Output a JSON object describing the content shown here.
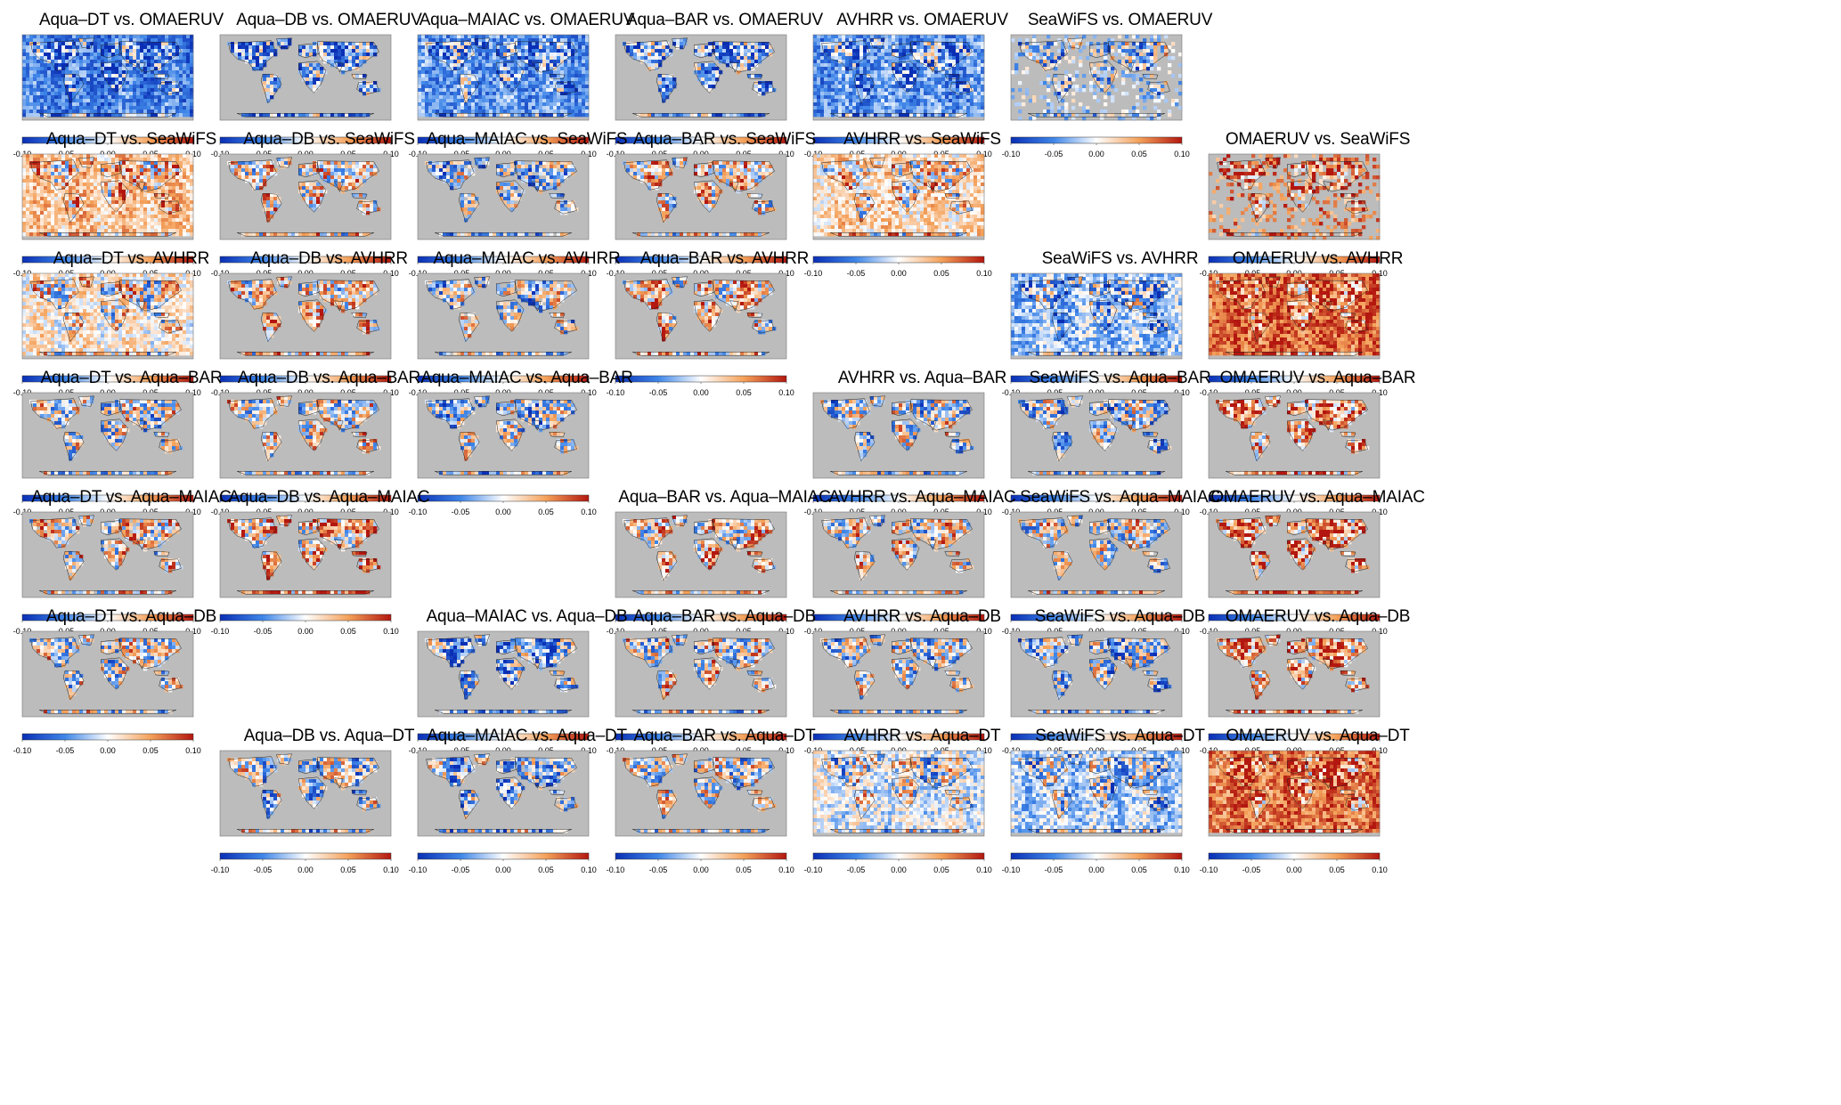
{
  "colorbar": {
    "ticks": [
      "-0.10",
      "-0.05",
      "0.00",
      "0.05",
      "0.10"
    ],
    "range": [
      -0.1,
      0.1
    ],
    "colors": {
      "neg_strong": "#0a2fb5",
      "neg_mid": "#3f86e8",
      "neutral": "#ffffff",
      "pos_mid": "#f4a15a",
      "pos_strong": "#b3170f",
      "ocean_mask": "#bcbcbc"
    }
  },
  "panels": [
    {
      "title": "Aqua–DT vs. OMAERUV",
      "row": 0,
      "col": 0,
      "mode": "full",
      "bias": -0.55
    },
    {
      "title": "Aqua–DB vs. OMAERUV",
      "row": 0,
      "col": 1,
      "mode": "land",
      "bias": -0.45
    },
    {
      "title": "Aqua–MAIAC vs. OMAERUV",
      "row": 0,
      "col": 2,
      "mode": "full",
      "bias": -0.45
    },
    {
      "title": "Aqua–BAR vs. OMAERUV",
      "row": 0,
      "col": 3,
      "mode": "land",
      "bias": -0.35
    },
    {
      "title": "AVHRR vs. OMAERUV",
      "row": 0,
      "col": 4,
      "mode": "full",
      "bias": -0.45
    },
    {
      "title": "SeaWiFS vs. OMAERUV",
      "row": 0,
      "col": 5,
      "mode": "scatter",
      "bias": -0.2
    },
    {
      "title": "Aqua–DT vs. SeaWiFS",
      "row": 1,
      "col": 0,
      "mode": "full",
      "bias": 0.3
    },
    {
      "title": "Aqua–DB vs. SeaWiFS",
      "row": 1,
      "col": 1,
      "mode": "land",
      "bias": 0.15
    },
    {
      "title": "Aqua–MAIAC vs. SeaWiFS",
      "row": 1,
      "col": 2,
      "mode": "patch",
      "bias": -0.2
    },
    {
      "title": "Aqua–BAR vs. SeaWiFS",
      "row": 1,
      "col": 3,
      "mode": "land",
      "bias": 0.2
    },
    {
      "title": "AVHRR vs. SeaWiFS",
      "row": 1,
      "col": 4,
      "mode": "full",
      "bias": 0.2
    },
    {
      "title": "OMAERUV vs. SeaWiFS",
      "row": 1,
      "col": 6,
      "mode": "scatter",
      "bias": 0.6
    },
    {
      "title": "Aqua–DT vs. AVHRR",
      "row": 2,
      "col": 0,
      "mode": "full",
      "bias": 0.1
    },
    {
      "title": "Aqua–DB vs. AVHRR",
      "row": 2,
      "col": 1,
      "mode": "land",
      "bias": 0.2
    },
    {
      "title": "Aqua–MAIAC vs. AVHRR",
      "row": 2,
      "col": 2,
      "mode": "patch",
      "bias": -0.1
    },
    {
      "title": "Aqua–BAR vs. AVHRR",
      "row": 2,
      "col": 3,
      "mode": "land",
      "bias": 0.25
    },
    {
      "title": "SeaWiFS vs. AVHRR",
      "row": 2,
      "col": 5,
      "mode": "full",
      "bias": -0.25
    },
    {
      "title": "OMAERUV vs. AVHRR",
      "row": 2,
      "col": 6,
      "mode": "full",
      "bias": 0.7
    },
    {
      "title": "Aqua–DT vs. Aqua–BAR",
      "row": 3,
      "col": 0,
      "mode": "land",
      "bias": 0.0
    },
    {
      "title": "Aqua–DB vs. Aqua–BAR",
      "row": 3,
      "col": 1,
      "mode": "land",
      "bias": 0.05
    },
    {
      "title": "Aqua–MAIAC vs. Aqua–BAR",
      "row": 3,
      "col": 2,
      "mode": "land",
      "bias": -0.15
    },
    {
      "title": "AVHRR vs. Aqua–BAR",
      "row": 3,
      "col": 4,
      "mode": "land",
      "bias": -0.05
    },
    {
      "title": "SeaWiFS vs. Aqua–BAR",
      "row": 3,
      "col": 5,
      "mode": "land",
      "bias": -0.15
    },
    {
      "title": "OMAERUV vs. Aqua–BAR",
      "row": 3,
      "col": 6,
      "mode": "land",
      "bias": 0.5
    },
    {
      "title": "Aqua–DT vs. Aqua–MAIAC",
      "row": 4,
      "col": 0,
      "mode": "patch",
      "bias": 0.2
    },
    {
      "title": "Aqua–DB vs. Aqua–MAIAC",
      "row": 4,
      "col": 1,
      "mode": "land",
      "bias": 0.35
    },
    {
      "title": "Aqua–BAR vs. Aqua–MAIAC",
      "row": 4,
      "col": 3,
      "mode": "land",
      "bias": 0.2
    },
    {
      "title": "AVHRR vs. Aqua–MAIAC",
      "row": 4,
      "col": 4,
      "mode": "patch",
      "bias": 0.1
    },
    {
      "title": "SeaWiFS vs. Aqua–MAIAC",
      "row": 4,
      "col": 5,
      "mode": "patch",
      "bias": 0.05
    },
    {
      "title": "OMAERUV vs. Aqua–MAIAC",
      "row": 4,
      "col": 6,
      "mode": "land",
      "bias": 0.55
    },
    {
      "title": "Aqua–DT vs. Aqua–DB",
      "row": 5,
      "col": 0,
      "mode": "land",
      "bias": 0.05
    },
    {
      "title": "Aqua–MAIAC vs. Aqua–DB",
      "row": 5,
      "col": 2,
      "mode": "land",
      "bias": -0.35
    },
    {
      "title": "Aqua–BAR vs. Aqua–DB",
      "row": 5,
      "col": 3,
      "mode": "land",
      "bias": 0.05
    },
    {
      "title": "AVHRR vs. Aqua–DB",
      "row": 5,
      "col": 4,
      "mode": "land",
      "bias": -0.1
    },
    {
      "title": "SeaWiFS vs. Aqua–DB",
      "row": 5,
      "col": 5,
      "mode": "land",
      "bias": -0.2
    },
    {
      "title": "OMAERUV vs. Aqua–DB",
      "row": 5,
      "col": 6,
      "mode": "land",
      "bias": 0.45
    },
    {
      "title": "Aqua–DB vs. Aqua–DT",
      "row": 6,
      "col": 1,
      "mode": "land",
      "bias": -0.05
    },
    {
      "title": "Aqua–MAIAC vs. Aqua–DT",
      "row": 6,
      "col": 2,
      "mode": "patch",
      "bias": -0.2
    },
    {
      "title": "Aqua–BAR vs. Aqua–DT",
      "row": 6,
      "col": 3,
      "mode": "land",
      "bias": 0.0
    },
    {
      "title": "AVHRR vs. Aqua–DT",
      "row": 6,
      "col": 4,
      "mode": "full",
      "bias": -0.05
    },
    {
      "title": "SeaWiFS vs. Aqua–DT",
      "row": 6,
      "col": 5,
      "mode": "full",
      "bias": -0.2
    },
    {
      "title": "OMAERUV vs. Aqua–DT",
      "row": 6,
      "col": 6,
      "mode": "full",
      "bias": 0.65
    }
  ]
}
